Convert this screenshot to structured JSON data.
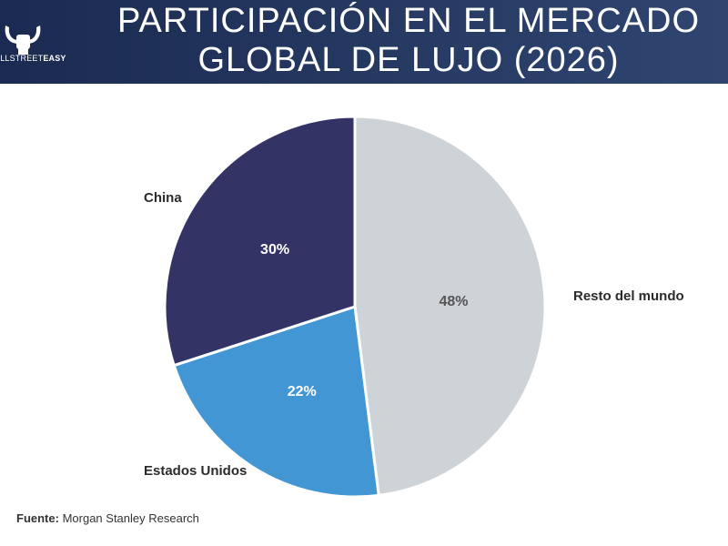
{
  "header": {
    "title_line1": "PARTICIPACIÓN EN EL MERCADO",
    "title_line2": "GLOBAL DE LUJO (2026)",
    "logo_prefix": "ALLSTREET",
    "logo_suffix": "EASY"
  },
  "footer": {
    "source_label": "Fuente:",
    "source_text": "Morgan Stanley Research"
  },
  "colors": {
    "header_bg": "#24375f",
    "china": "#333366",
    "usa": "#4196d3",
    "rest": "#ced3d8"
  },
  "chart_data": {
    "type": "pie",
    "title": "PARTICIPACIÓN EN EL MERCADO GLOBAL DE LUJO (2026)",
    "slices": [
      {
        "label": "Resto del mundo",
        "value": 48,
        "value_label": "48%",
        "color": "#ced3d8",
        "label_color": "#555555"
      },
      {
        "label": "Estados Unidos",
        "value": 22,
        "value_label": "22%",
        "color": "#4196d3",
        "label_color": "#ffffff"
      },
      {
        "label": "China",
        "value": 30,
        "value_label": "30%",
        "color": "#333366",
        "label_color": "#ffffff"
      }
    ],
    "legend": "none"
  }
}
